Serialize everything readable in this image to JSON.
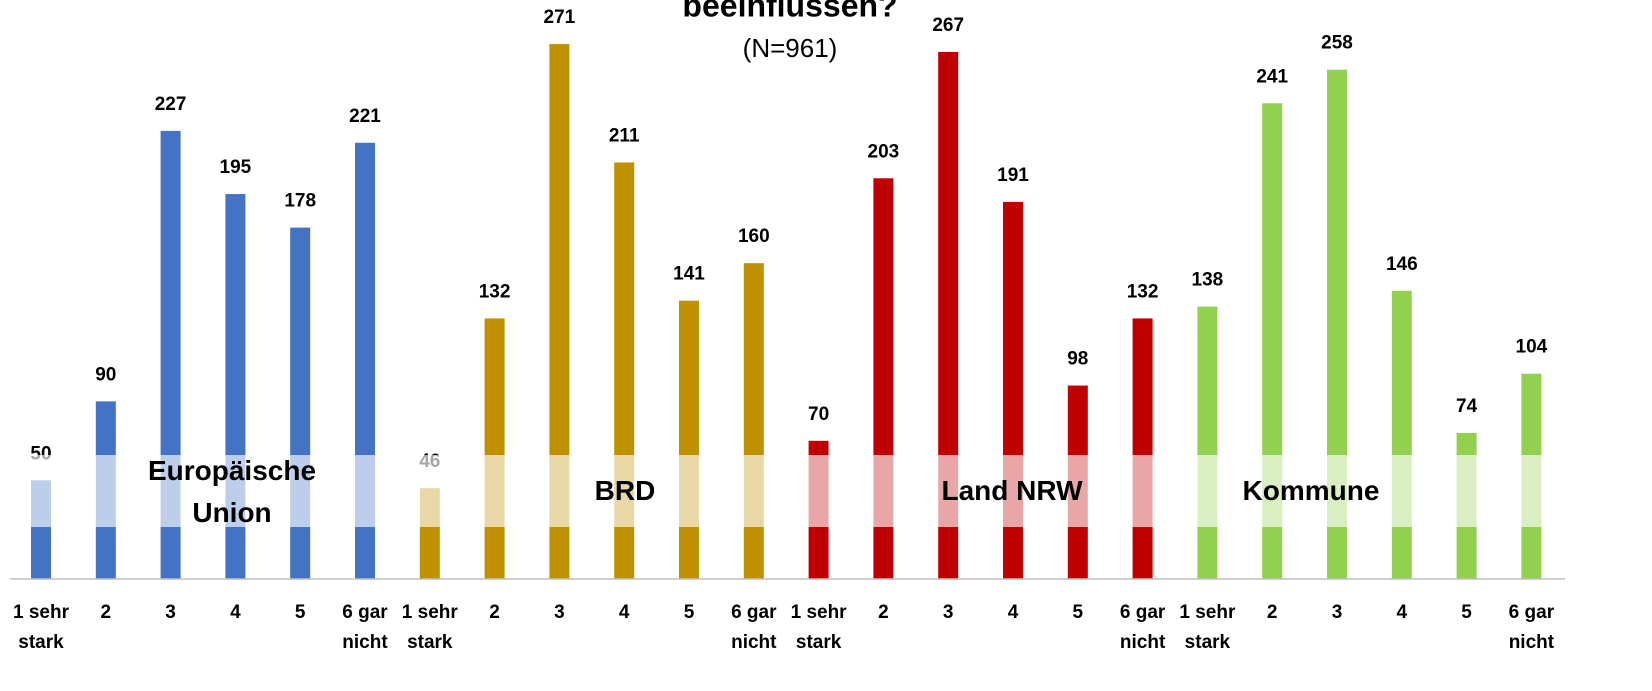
{
  "chart_data": {
    "type": "grouped-bar",
    "title": "beeinflussen?",
    "subtitle": "(N=961)",
    "categories": [
      "1 sehr stark",
      "2",
      "3",
      "4",
      "5",
      "6 gar nicht"
    ],
    "series": [
      {
        "name": "Europäische Union",
        "color": "#4472c4",
        "values": [
          50,
          90,
          227,
          195,
          178,
          221
        ]
      },
      {
        "name": "BRD",
        "color": "#bf9000",
        "values": [
          46,
          132,
          271,
          211,
          141,
          160
        ]
      },
      {
        "name": "Land NRW",
        "color": "#c00000",
        "values": [
          70,
          203,
          267,
          191,
          98,
          132
        ]
      },
      {
        "name": "Kommune",
        "color": "#92d050",
        "values": [
          138,
          241,
          258,
          146,
          74,
          104
        ]
      }
    ],
    "ylim": [
      0,
      300
    ]
  }
}
